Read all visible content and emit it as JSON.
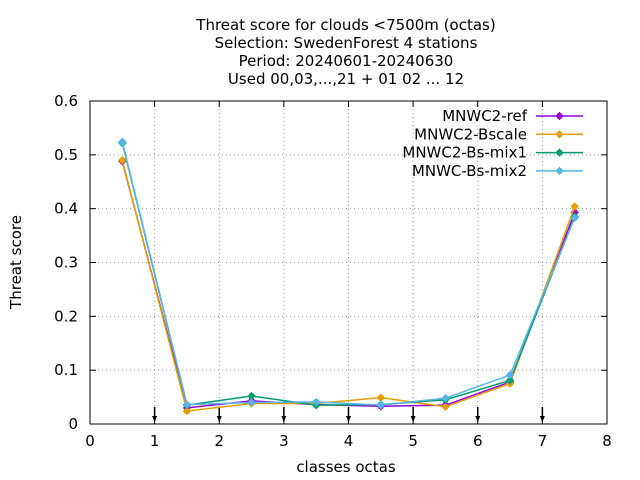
{
  "chart_data": {
    "type": "line",
    "title_lines": [
      "Threat score  for clouds <7500m (octas)",
      "Selection: SwedenForest      4 stations",
      "Period: 20240601-20240630",
      "Used 00,03,...,21 + 01 02 ... 12"
    ],
    "xlabel": "classes octas",
    "ylabel": "Threat score",
    "xlim": [
      0,
      8
    ],
    "ylim": [
      0,
      0.6
    ],
    "xticks": [
      "0",
      "1",
      "2",
      "3",
      "4",
      "5",
      "6",
      "7",
      "8"
    ],
    "yticks": [
      "0",
      "0.1",
      "0.2",
      "0.3",
      "0.4",
      "0.5",
      "0.6"
    ],
    "grid": true,
    "legend_position": "top-right",
    "x": [
      0.5,
      1.5,
      2.5,
      3.5,
      4.5,
      5.5,
      6.5,
      7.5
    ],
    "series": [
      {
        "name": "MNWC2-ref",
        "color": "#9400d3",
        "values": [
          0.488,
          0.03,
          0.043,
          0.036,
          0.033,
          0.035,
          0.078,
          0.393
        ]
      },
      {
        "name": "MNWC2-Bscale",
        "color": "#e69f00",
        "values": [
          0.49,
          0.024,
          0.038,
          0.038,
          0.049,
          0.032,
          0.075,
          0.404
        ]
      },
      {
        "name": "MNWC2-Bs-mix1",
        "color": "#009e73",
        "values": [
          0.522,
          0.035,
          0.052,
          0.035,
          0.036,
          0.045,
          0.081,
          0.385
        ]
      },
      {
        "name": "MNWC-Bs-mix2",
        "color": "#56b4e9",
        "values": [
          0.524,
          0.036,
          0.04,
          0.041,
          0.035,
          0.048,
          0.091,
          0.383
        ]
      }
    ],
    "arrow_markers_x": [
      1,
      2,
      3,
      4,
      5,
      6,
      7
    ]
  }
}
